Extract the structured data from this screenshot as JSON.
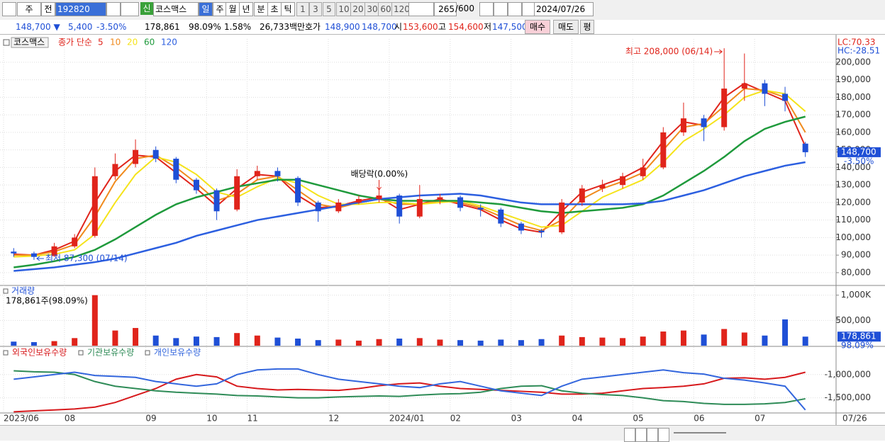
{
  "toolbar": {
    "period_unit": "주",
    "prev": "전",
    "code": "192820",
    "stock_name": "코스맥스",
    "new_badge": "신",
    "periods": [
      "일",
      "주",
      "월",
      "년",
      "분",
      "초",
      "틱"
    ],
    "intervals": [
      "1",
      "3",
      "5",
      "10",
      "20",
      "30",
      "60",
      "120"
    ],
    "count": "265",
    "count_max": "/600",
    "date": "2024/07/26"
  },
  "quote_bar": {
    "price": "148,700 ▼",
    "change": "5,400",
    "change_rate": "-3.50%",
    "volume": "178,861",
    "volume_ratio": "98.09%",
    "turnover": "1.58%",
    "amount": "26,733백만",
    "ask_label": "호가",
    "ask": "148,900",
    "bid": "148,700",
    "open_label": "시",
    "open": "153,600",
    "high_label": "고",
    "high": "154,600",
    "low_label": "저",
    "low": "147,500",
    "buy": "매수",
    "sell": "매도",
    "eval": "평"
  },
  "chart_data": [
    {
      "type": "candlestick",
      "legend_label": "코스맥스",
      "ma_label": "종가 단순",
      "categories": [
        "2023/06",
        null,
        null,
        "08",
        null,
        null,
        null,
        "09",
        null,
        null,
        "10",
        null,
        "11",
        null,
        null,
        null,
        "12",
        null,
        null,
        "2024/01",
        null,
        null,
        "02",
        null,
        null,
        "03",
        null,
        null,
        "04",
        null,
        null,
        "05",
        null,
        null,
        "06",
        null,
        null,
        "07",
        null,
        null
      ],
      "x_end_label": "07/26",
      "open": [
        92000,
        91000,
        89500,
        95000,
        101000,
        135000,
        142000,
        150000,
        145000,
        133000,
        127000,
        116000,
        135000,
        138000,
        134000,
        120000,
        115000,
        120000,
        122000,
        124000,
        112000,
        122000,
        123000,
        117000,
        116000,
        108000,
        104000,
        103000,
        120000,
        128000,
        130000,
        135000,
        140000,
        160000,
        168000,
        163000,
        185000,
        188000,
        182000,
        153600
      ],
      "high": [
        94000,
        92000,
        97000,
        102000,
        140000,
        148000,
        156000,
        152000,
        146000,
        134000,
        128000,
        139000,
        141000,
        140000,
        135000,
        121000,
        122000,
        124000,
        128000,
        125000,
        130000,
        125000,
        124000,
        119000,
        117000,
        109000,
        105000,
        122000,
        130000,
        133000,
        137000,
        145000,
        163000,
        177000,
        170000,
        208000,
        205000,
        190000,
        186000,
        154600
      ],
      "low": [
        89000,
        87300,
        89000,
        94000,
        100000,
        133000,
        140000,
        143000,
        131000,
        125000,
        110000,
        115000,
        133000,
        132000,
        118000,
        109000,
        114000,
        119000,
        120000,
        108000,
        111000,
        119000,
        115000,
        112000,
        106000,
        102000,
        100000,
        102000,
        118000,
        126000,
        128000,
        133000,
        139000,
        158000,
        155000,
        161000,
        178000,
        175000,
        172000,
        146000
      ],
      "close": [
        91000,
        89000,
        95000,
        100000,
        135000,
        142000,
        150000,
        145000,
        133000,
        127000,
        115000,
        135000,
        138000,
        135000,
        120000,
        115000,
        120000,
        122000,
        124000,
        112000,
        122000,
        123000,
        117000,
        116000,
        108000,
        104000,
        103000,
        120000,
        128000,
        130000,
        135000,
        140000,
        160000,
        168000,
        163000,
        185000,
        188000,
        182000,
        178000,
        148700
      ],
      "up_color": "#e0241b",
      "down_color": "#1f4fd6",
      "series": [
        {
          "name": "5",
          "color": "#e0241b",
          "values": [
            90500,
            90000,
            93000,
            98000,
            120000,
            138000,
            147000,
            146000,
            137000,
            128000,
            118000,
            128000,
            136000,
            135000,
            124000,
            117000,
            118000,
            121000,
            123000,
            116000,
            119000,
            122000,
            119000,
            116000,
            110000,
            105000,
            103000,
            115000,
            126000,
            130000,
            134000,
            140000,
            155000,
            166000,
            164000,
            180000,
            188000,
            183000,
            178000,
            152000
          ]
        },
        {
          "name": "10",
          "color": "#f08a1c",
          "values": [
            90000,
            90000,
            92000,
            96000,
            112000,
            132000,
            145000,
            147000,
            140000,
            131000,
            121000,
            125000,
            133000,
            135000,
            127000,
            119000,
            117000,
            120000,
            122000,
            119000,
            119000,
            121000,
            120000,
            117000,
            112000,
            107000,
            104000,
            110000,
            122000,
            128000,
            132000,
            137000,
            150000,
            163000,
            165000,
            175000,
            185000,
            184000,
            180000,
            160000
          ]
        },
        {
          "name": "20",
          "color": "#f5e31a",
          "values": [
            89000,
            89500,
            90500,
            93000,
            102000,
            120000,
            136000,
            146000,
            143000,
            136000,
            126000,
            123000,
            129000,
            134000,
            131000,
            124000,
            119000,
            119000,
            120000,
            120000,
            119000,
            120000,
            121000,
            118000,
            114000,
            110000,
            106000,
            107000,
            115000,
            123000,
            128000,
            133000,
            143000,
            155000,
            162000,
            170000,
            180000,
            184000,
            182000,
            172000
          ]
        },
        {
          "name": "60",
          "color": "#1f9a3c",
          "values": [
            83000,
            84500,
            86500,
            89000,
            93000,
            99000,
            106000,
            113000,
            119000,
            123000,
            126000,
            129000,
            131000,
            133000,
            133000,
            130000,
            127000,
            124000,
            122000,
            121000,
            121000,
            121000,
            121000,
            120000,
            119000,
            117000,
            115000,
            114000,
            115000,
            116000,
            117000,
            119000,
            124000,
            131000,
            138000,
            146000,
            155000,
            162000,
            166000,
            169000
          ]
        },
        {
          "name": "120",
          "color": "#2c5fe0",
          "values": [
            81000,
            82000,
            83000,
            84500,
            86000,
            88000,
            91000,
            94000,
            97000,
            101000,
            104000,
            107000,
            110000,
            112000,
            114000,
            116000,
            118000,
            120000,
            122000,
            123000,
            124000,
            124500,
            125000,
            124000,
            122000,
            120000,
            119000,
            119000,
            119000,
            119000,
            119000,
            119500,
            121000,
            124000,
            127000,
            131000,
            135000,
            138000,
            141000,
            143000
          ]
        }
      ],
      "ylim": [
        73100,
        213300
      ],
      "yticks": [
        {
          "value": 80000,
          "label": "80,000"
        },
        {
          "value": 90000,
          "label": "90,000"
        },
        {
          "value": 100000,
          "label": "100,000"
        },
        {
          "value": 110000,
          "label": "110,000"
        },
        {
          "value": 120000,
          "label": "120,000"
        },
        {
          "value": 130000,
          "label": "130,000"
        },
        {
          "value": 140000,
          "label": "140,000"
        },
        {
          "value": 150000,
          "label": "150,000"
        },
        {
          "value": 160000,
          "label": "160,000"
        },
        {
          "value": 170000,
          "label": "170,000"
        },
        {
          "value": 180000,
          "label": "180,000"
        },
        {
          "value": 190000,
          "label": "190,000"
        },
        {
          "value": 200000,
          "label": "200,000"
        }
      ],
      "grid": true,
      "lc": "LC:70.33",
      "hc": "HC:-28.51",
      "annotations": [
        "최고 208,000 (06/14)",
        "최저 87,300 (07/14)",
        "배당락(0.00%)"
      ],
      "last_price": {
        "value": 148700,
        "label": "148,700"
      },
      "last_change": "-3.50%"
    },
    {
      "type": "bar",
      "title": "거래량",
      "subtitle": "178,861주(98.09%)",
      "values": [
        80000,
        70000,
        90000,
        150000,
        1000000,
        300000,
        350000,
        200000,
        150000,
        180000,
        170000,
        250000,
        200000,
        160000,
        140000,
        110000,
        120000,
        100000,
        130000,
        140000,
        150000,
        120000,
        110000,
        100000,
        120000,
        110000,
        130000,
        200000,
        170000,
        160000,
        150000,
        180000,
        280000,
        300000,
        220000,
        330000,
        260000,
        200000,
        520000,
        178861
      ],
      "ylim": [
        0,
        1150000
      ],
      "yticks": [
        {
          "value": 500000,
          "label": "500,000"
        },
        {
          "value": 1000000,
          "label": "1,000K"
        }
      ],
      "grid": true,
      "last_value": {
        "value": 178861,
        "label": "178,861"
      },
      "last_ratio": "98.09%"
    },
    {
      "type": "line",
      "series": [
        {
          "name": "외국인보유수량",
          "color": "#d7191c",
          "values": [
            -1800000,
            -1780000,
            -1760000,
            -1740000,
            -1700000,
            -1600000,
            -1450000,
            -1300000,
            -1100000,
            -1000000,
            -1050000,
            -1250000,
            -1300000,
            -1330000,
            -1320000,
            -1330000,
            -1340000,
            -1300000,
            -1240000,
            -1200000,
            -1180000,
            -1250000,
            -1300000,
            -1320000,
            -1340000,
            -1360000,
            -1380000,
            -1420000,
            -1420000,
            -1400000,
            -1350000,
            -1300000,
            -1280000,
            -1250000,
            -1200000,
            -1080000,
            -1070000,
            -1100000,
            -1060000,
            -950000
          ]
        },
        {
          "name": "기관보유수량",
          "color": "#2e8b57",
          "values": [
            -920000,
            -940000,
            -950000,
            -1000000,
            -1150000,
            -1250000,
            -1300000,
            -1350000,
            -1380000,
            -1400000,
            -1420000,
            -1450000,
            -1460000,
            -1480000,
            -1500000,
            -1500000,
            -1480000,
            -1470000,
            -1460000,
            -1470000,
            -1440000,
            -1420000,
            -1410000,
            -1380000,
            -1300000,
            -1250000,
            -1240000,
            -1350000,
            -1400000,
            -1430000,
            -1450000,
            -1500000,
            -1560000,
            -1580000,
            -1620000,
            -1640000,
            -1640000,
            -1630000,
            -1600000,
            -1520000
          ]
        },
        {
          "name": "개인보유수량",
          "color": "#3366dd",
          "values": [
            -1100000,
            -1050000,
            -1000000,
            -950000,
            -1020000,
            -1040000,
            -1060000,
            -1150000,
            -1200000,
            -1250000,
            -1200000,
            -1000000,
            -900000,
            -880000,
            -880000,
            -1000000,
            -1100000,
            -1150000,
            -1200000,
            -1250000,
            -1280000,
            -1200000,
            -1150000,
            -1250000,
            -1350000,
            -1400000,
            -1450000,
            -1250000,
            -1100000,
            -1050000,
            -1000000,
            -950000,
            -900000,
            -960000,
            -990000,
            -1080000,
            -1120000,
            -1180000,
            -1250000,
            -1760000
          ]
        }
      ],
      "ylim": [
        -1810000,
        -440000
      ],
      "yticks": [
        {
          "value": -1000000,
          "label": "-1,000,000"
        },
        {
          "value": -1500000,
          "label": "-1,500,000"
        }
      ],
      "grid": true
    }
  ]
}
